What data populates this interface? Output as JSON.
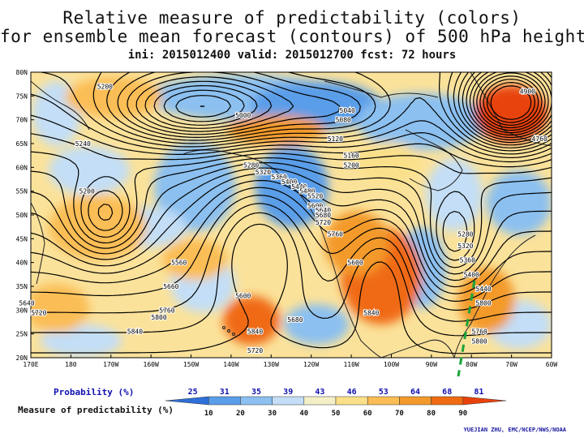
{
  "title": {
    "line1": "Relative measure of predictability (colors)",
    "line2": "for ensemble mean forecast (contours) of 500 hPa height",
    "line3": "ini: 2015012400 valid: 2015012700 fcst: 72 hours"
  },
  "map": {
    "lat_labels": [
      "80N",
      "75N",
      "70N",
      "65N",
      "60N",
      "55N",
      "50N",
      "45N",
      "40N",
      "35N",
      "30N",
      "25N",
      "20N"
    ],
    "lon_labels": [
      "170E",
      "180",
      "170W",
      "160W",
      "150W",
      "140W",
      "130W",
      "120W",
      "110W",
      "100W",
      "90W",
      "80W",
      "70W",
      "60W"
    ],
    "contour_labels": [
      {
        "text": "5200",
        "lon": -171.5,
        "lat": 77
      },
      {
        "text": "5000",
        "lon": -137,
        "lat": 71
      },
      {
        "text": "5040",
        "lon": -111,
        "lat": 72
      },
      {
        "text": "5080",
        "lon": -112,
        "lat": 70
      },
      {
        "text": "5120",
        "lon": -114,
        "lat": 66
      },
      {
        "text": "5160",
        "lon": -110,
        "lat": 62.5
      },
      {
        "text": "5200",
        "lon": -110,
        "lat": 60.5
      },
      {
        "text": "5240",
        "lon": -177,
        "lat": 65
      },
      {
        "text": "5200",
        "lon": -176,
        "lat": 55
      },
      {
        "text": "5280",
        "lon": -135,
        "lat": 60.5
      },
      {
        "text": "5320",
        "lon": -132,
        "lat": 59
      },
      {
        "text": "5360",
        "lon": -128,
        "lat": 58
      },
      {
        "text": "5400",
        "lon": -125.5,
        "lat": 57
      },
      {
        "text": "5440",
        "lon": -123,
        "lat": 56
      },
      {
        "text": "5480",
        "lon": -121,
        "lat": 55
      },
      {
        "text": "5520",
        "lon": -119,
        "lat": 54
      },
      {
        "text": "5600",
        "lon": -119,
        "lat": 52
      },
      {
        "text": "5640",
        "lon": -117,
        "lat": 51
      },
      {
        "text": "5680",
        "lon": -117,
        "lat": 50
      },
      {
        "text": "5720",
        "lon": -117,
        "lat": 48.5
      },
      {
        "text": "5760",
        "lon": -114,
        "lat": 46
      },
      {
        "text": "5560",
        "lon": -153,
        "lat": 40
      },
      {
        "text": "5600",
        "lon": -109,
        "lat": 40
      },
      {
        "text": "5660",
        "lon": -155,
        "lat": 35
      },
      {
        "text": "5600",
        "lon": -137,
        "lat": 33
      },
      {
        "text": "5760",
        "lon": -156,
        "lat": 30
      },
      {
        "text": "5800",
        "lon": -158,
        "lat": 28.5
      },
      {
        "text": "5680",
        "lon": -124,
        "lat": 28
      },
      {
        "text": "5840",
        "lon": -105,
        "lat": 29.5
      },
      {
        "text": "5720",
        "lon": -188,
        "lat": 29.5
      },
      {
        "text": "5840",
        "lon": -164,
        "lat": 25.5
      },
      {
        "text": "5840",
        "lon": -134,
        "lat": 25.5
      },
      {
        "text": "5720",
        "lon": -134,
        "lat": 21.5
      },
      {
        "text": "5640",
        "lon": -191,
        "lat": 31.5
      },
      {
        "text": "5280",
        "lon": -81.5,
        "lat": 46
      },
      {
        "text": "5320",
        "lon": -81.5,
        "lat": 43.5
      },
      {
        "text": "5360",
        "lon": -81,
        "lat": 40.5
      },
      {
        "text": "5400",
        "lon": -80,
        "lat": 37.5
      },
      {
        "text": "5440",
        "lon": -77,
        "lat": 34.5
      },
      {
        "text": "5800",
        "lon": -77,
        "lat": 31.5
      },
      {
        "text": "5760",
        "lon": -78,
        "lat": 25.5
      },
      {
        "text": "5800",
        "lon": -78,
        "lat": 23.5
      },
      {
        "text": "4900",
        "lon": -66,
        "lat": 76
      },
      {
        "text": "4760",
        "lon": -63,
        "lat": 66
      }
    ]
  },
  "colorbar": {
    "probability_title": "Probability (%)",
    "probability_ticks": [
      "25",
      "31",
      "35",
      "39",
      "43",
      "46",
      "53",
      "64",
      "68",
      "81"
    ],
    "measure_title": "Measure of predictability (%)",
    "measure_ticks": [
      "10",
      "20",
      "30",
      "40",
      "50",
      "60",
      "70",
      "80",
      "90"
    ],
    "colors": [
      "#2e6fd8",
      "#5a9de8",
      "#8bc0f0",
      "#c3def6",
      "#f3f0c8",
      "#fbe08a",
      "#fbbd55",
      "#f39a2c",
      "#f06a12",
      "#e8420a"
    ]
  },
  "credit": "YUEJIAN ZHU, EMC/NCEP/NWS/NOAA"
}
